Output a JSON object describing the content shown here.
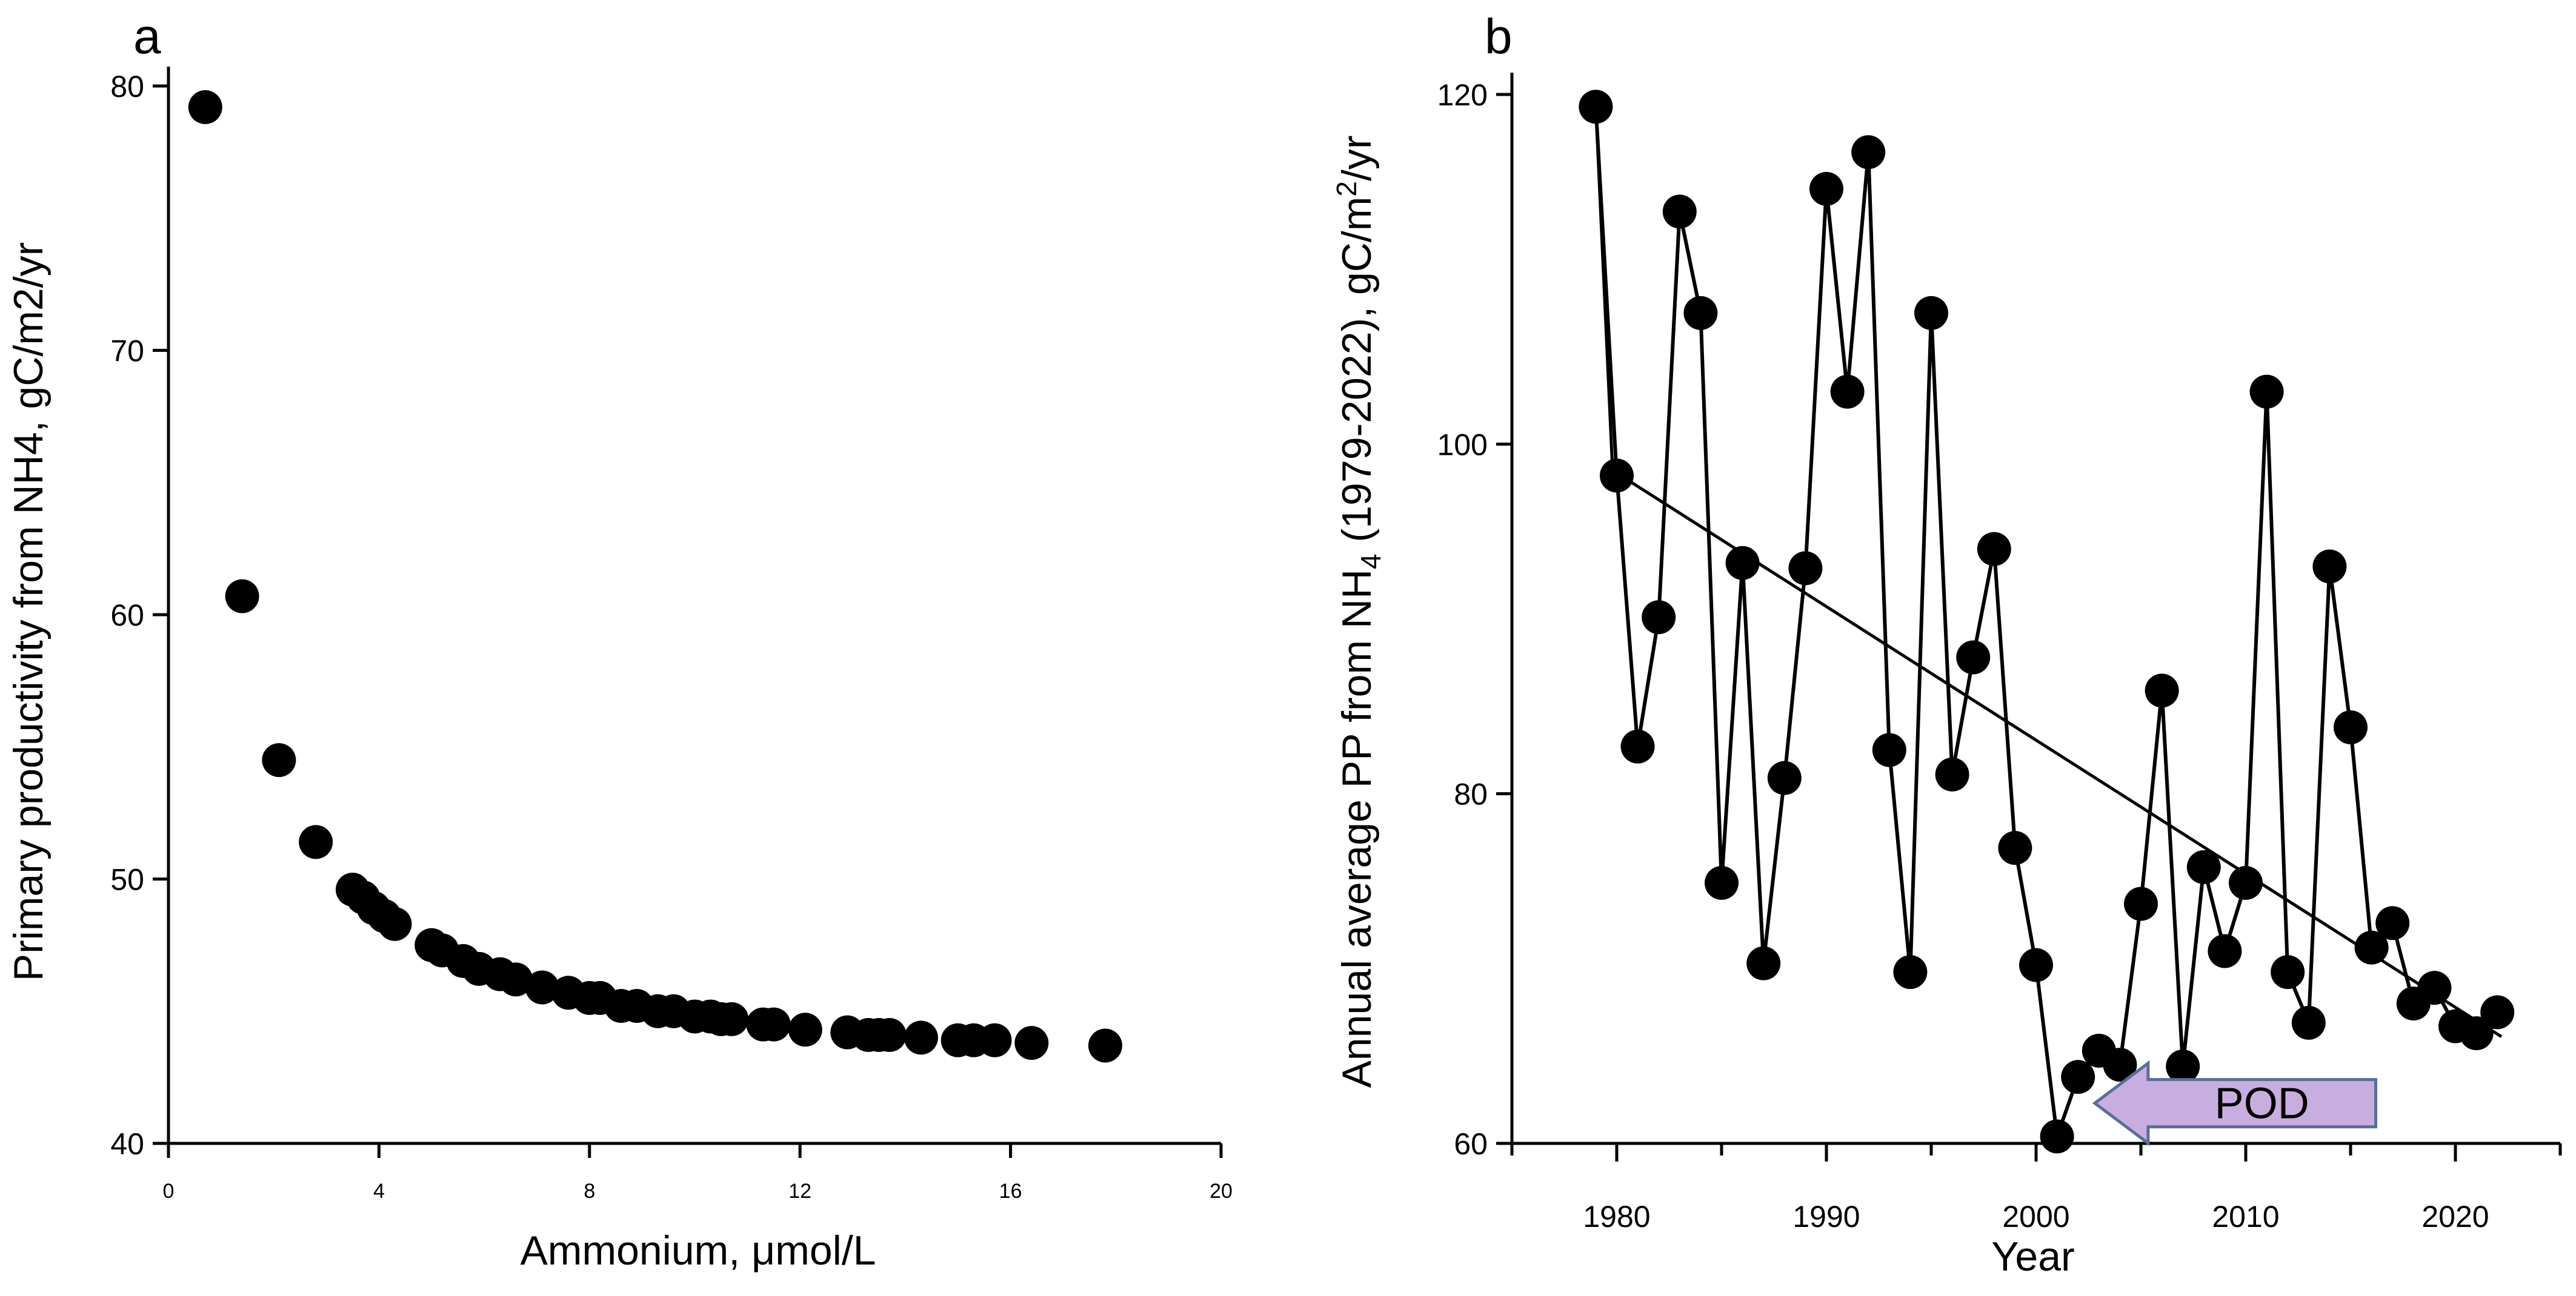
{
  "chart_data": [
    {
      "type": "scatter",
      "panel_label": "a",
      "xlabel": "Ammonium, μmol/L",
      "ylabel": "Primary productivity from NH4, gC/m2/yr",
      "xlim": [
        0,
        20
      ],
      "ylim": [
        40,
        80
      ],
      "xticks": [
        0,
        4,
        8,
        12,
        16,
        20
      ],
      "yticks": [
        40,
        50,
        60,
        70,
        80
      ],
      "x": [
        0.7,
        1.4,
        2.1,
        2.8,
        3.5,
        3.7,
        3.9,
        4.1,
        4.3,
        5.0,
        5.2,
        5.6,
        5.9,
        6.3,
        6.6,
        7.1,
        7.6,
        8.0,
        8.2,
        8.6,
        8.9,
        9.3,
        9.6,
        10.0,
        10.3,
        10.5,
        10.7,
        11.3,
        11.5,
        12.1,
        12.9,
        13.3,
        13.5,
        13.7,
        14.3,
        15.0,
        15.3,
        15.7,
        16.4,
        17.8
      ],
      "y": [
        79.2,
        60.7,
        54.5,
        51.4,
        49.6,
        49.3,
        48.9,
        48.6,
        48.3,
        47.5,
        47.3,
        46.9,
        46.6,
        46.4,
        46.2,
        45.9,
        45.7,
        45.5,
        45.5,
        45.2,
        45.2,
        45.0,
        45.0,
        44.8,
        44.8,
        44.7,
        44.7,
        44.5,
        44.5,
        44.3,
        44.2,
        44.1,
        44.1,
        44.1,
        44.0,
        43.9,
        43.9,
        43.9,
        43.8,
        43.7
      ]
    },
    {
      "type": "line",
      "panel_label": "b",
      "xlabel": "Year",
      "ylabel_main": "Annual average PP from NH",
      "ylabel_sub": "4",
      "ylabel_tail": " (1979-2022), gC/m",
      "ylabel_sup": "2",
      "ylabel_end": "/yr",
      "xlim": [
        1975,
        2025
      ],
      "ylim": [
        60,
        120
      ],
      "xticks": [
        1980,
        1990,
        2000,
        2010,
        2020
      ],
      "yticks": [
        60,
        80,
        100,
        120
      ],
      "series": [
        {
          "name": "Annual average PP",
          "x": [
            1979,
            1980,
            1981,
            1982,
            1983,
            1984,
            1985,
            1986,
            1987,
            1988,
            1989,
            1990,
            1991,
            1992,
            1993,
            1994,
            1995,
            1996,
            1997,
            1998,
            1999,
            2000,
            2001,
            2002,
            2003,
            2004,
            2005,
            2006,
            2007,
            2008,
            2009,
            2010,
            2011,
            2012,
            2013,
            2014,
            2015,
            2016,
            2017,
            2018,
            2019,
            2020,
            2021,
            2022
          ],
          "values": [
            119.3,
            98.2,
            82.7,
            90.1,
            113.3,
            107.5,
            74.9,
            93.2,
            70.3,
            80.9,
            92.9,
            114.6,
            103.0,
            116.7,
            82.5,
            69.8,
            107.5,
            81.1,
            87.8,
            94.0,
            76.9,
            70.2,
            60.4,
            63.8,
            65.3,
            64.5,
            73.7,
            85.9,
            64.4,
            75.8,
            71.0,
            74.9,
            103.0,
            69.8,
            66.9,
            93.0,
            83.8,
            71.2,
            72.6,
            68.0,
            68.9,
            66.7,
            66.3,
            67.5
          ]
        }
      ],
      "trend_lines": [
        {
          "x": [
            1979,
            1979.8
          ],
          "values": [
            119.3,
            98.5
          ]
        },
        {
          "x": [
            1979.8,
            2022.2
          ],
          "values": [
            98.5,
            66.1
          ]
        }
      ],
      "annotation": {
        "text": "POD",
        "x_tail": 2016.2,
        "x_head": 2002.8,
        "y": 62.3,
        "color": "#c8aee0",
        "border": "#5b6e97"
      }
    }
  ]
}
